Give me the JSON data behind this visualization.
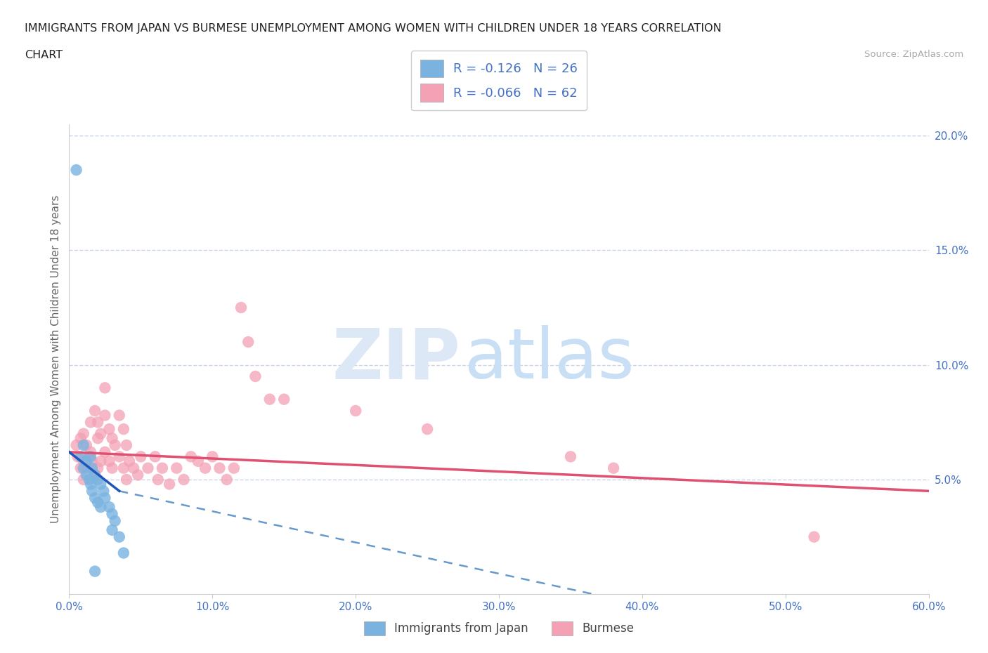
{
  "title_line1": "IMMIGRANTS FROM JAPAN VS BURMESE UNEMPLOYMENT AMONG WOMEN WITH CHILDREN UNDER 18 YEARS CORRELATION",
  "title_line2": "CHART",
  "source": "Source: ZipAtlas.com",
  "ylabel": "Unemployment Among Women with Children Under 18 years",
  "xlim": [
    0.0,
    0.6
  ],
  "ylim": [
    0.0,
    0.205
  ],
  "xticks": [
    0.0,
    0.1,
    0.2,
    0.3,
    0.4,
    0.5,
    0.6
  ],
  "xticklabels": [
    "0.0%",
    "10.0%",
    "20.0%",
    "30.0%",
    "40.0%",
    "50.0%",
    "60.0%"
  ],
  "yticks_right": [
    0.05,
    0.1,
    0.15,
    0.2
  ],
  "yticklabels_right": [
    "5.0%",
    "10.0%",
    "15.0%",
    "20.0%"
  ],
  "japan_color": "#7ab3e0",
  "burmese_color": "#f4a0b5",
  "japan_R": -0.126,
  "japan_N": 26,
  "burmese_R": -0.066,
  "burmese_N": 62,
  "legend_label_japan": "Immigrants from Japan",
  "legend_label_burmese": "Burmese",
  "watermark_ZIP": "ZIP",
  "watermark_atlas": "atlas",
  "background_color": "#ffffff",
  "grid_color": "#c8d4e8",
  "axis_label_color": "#4472c4",
  "title_color": "#222222",
  "japan_scatter_x": [
    0.005,
    0.008,
    0.01,
    0.01,
    0.012,
    0.012,
    0.014,
    0.015,
    0.015,
    0.016,
    0.016,
    0.018,
    0.018,
    0.02,
    0.02,
    0.022,
    0.022,
    0.024,
    0.025,
    0.028,
    0.03,
    0.03,
    0.032,
    0.035,
    0.038,
    0.018
  ],
  "japan_scatter_y": [
    0.185,
    0.06,
    0.055,
    0.065,
    0.052,
    0.058,
    0.05,
    0.06,
    0.048,
    0.055,
    0.045,
    0.052,
    0.042,
    0.05,
    0.04,
    0.048,
    0.038,
    0.045,
    0.042,
    0.038,
    0.035,
    0.028,
    0.032,
    0.025,
    0.018,
    0.01
  ],
  "burmese_scatter_x": [
    0.005,
    0.006,
    0.008,
    0.008,
    0.01,
    0.01,
    0.01,
    0.012,
    0.012,
    0.014,
    0.015,
    0.015,
    0.016,
    0.018,
    0.018,
    0.02,
    0.02,
    0.02,
    0.022,
    0.022,
    0.025,
    0.025,
    0.028,
    0.028,
    0.03,
    0.03,
    0.032,
    0.035,
    0.035,
    0.038,
    0.038,
    0.04,
    0.04,
    0.042,
    0.045,
    0.048,
    0.05,
    0.055,
    0.06,
    0.062,
    0.065,
    0.07,
    0.075,
    0.08,
    0.085,
    0.09,
    0.095,
    0.1,
    0.105,
    0.11,
    0.115,
    0.12,
    0.125,
    0.13,
    0.14,
    0.15,
    0.2,
    0.25,
    0.35,
    0.38,
    0.52,
    0.025
  ],
  "burmese_scatter_y": [
    0.065,
    0.06,
    0.068,
    0.055,
    0.07,
    0.058,
    0.05,
    0.065,
    0.055,
    0.06,
    0.075,
    0.062,
    0.058,
    0.08,
    0.052,
    0.075,
    0.068,
    0.055,
    0.07,
    0.058,
    0.078,
    0.062,
    0.072,
    0.058,
    0.068,
    0.055,
    0.065,
    0.078,
    0.06,
    0.072,
    0.055,
    0.065,
    0.05,
    0.058,
    0.055,
    0.052,
    0.06,
    0.055,
    0.06,
    0.05,
    0.055,
    0.048,
    0.055,
    0.05,
    0.06,
    0.058,
    0.055,
    0.06,
    0.055,
    0.05,
    0.055,
    0.125,
    0.11,
    0.095,
    0.085,
    0.085,
    0.08,
    0.072,
    0.06,
    0.055,
    0.025,
    0.09
  ]
}
